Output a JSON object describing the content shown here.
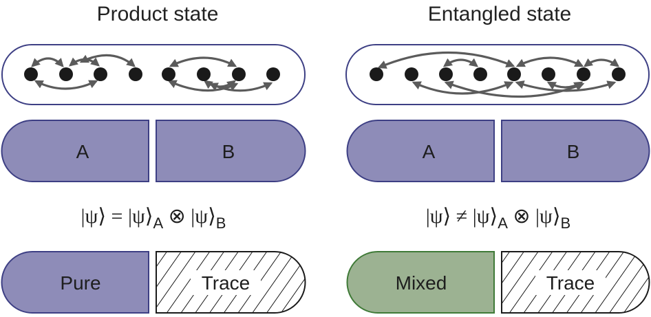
{
  "panels": [
    {
      "title": "Product state",
      "segment_a": "A",
      "segment_b": "B",
      "formula": {
        "lhs": "|ψ⟩",
        "op": "=",
        "ket": "|ψ⟩",
        "sub_a": "A",
        "tensor": "⊗",
        "sub_b": "B"
      },
      "bottom_left": "Pure",
      "bottom_right": "Trace"
    },
    {
      "title": "Entangled state",
      "segment_a": "A",
      "segment_b": "B",
      "formula": {
        "lhs": "|ψ⟩",
        "op": "≠",
        "ket": "|ψ⟩",
        "sub_a": "A",
        "tensor": "⊗",
        "sub_b": "B"
      },
      "bottom_left": "Mixed",
      "bottom_right": "Trace"
    }
  ],
  "colors": {
    "subsystem_fill": "#8e8cb8",
    "subsystem_stroke": "#3d3f84",
    "mixed_fill": "#9cb292",
    "mixed_stroke": "#3f7a37",
    "box_stroke": "#3d3f84",
    "arrow": "#5b5b5b",
    "dot": "#1a1a1a"
  }
}
